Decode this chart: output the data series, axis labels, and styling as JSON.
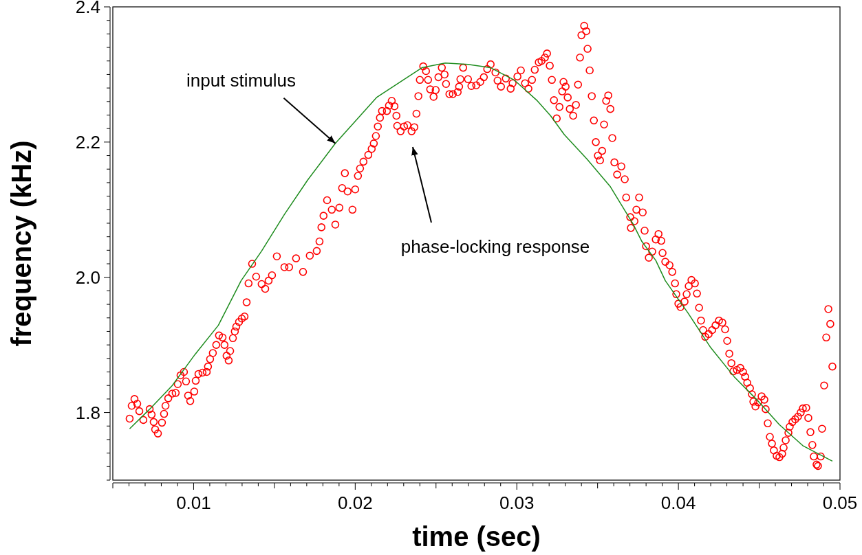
{
  "chart_data": {
    "type": "scatter",
    "xlabel": "time (sec)",
    "ylabel": "frequency (kHz)",
    "xlim": [
      0.005,
      0.05
    ],
    "ylim": [
      1.7,
      2.4
    ],
    "xticks": [
      {
        "value": 0.005,
        "label": null
      },
      {
        "value": 0.006,
        "label": null
      },
      {
        "value": 0.007,
        "label": null
      },
      {
        "value": 0.008,
        "label": null
      },
      {
        "value": 0.009,
        "label": null
      },
      0.01,
      {
        "value": 0.011,
        "label": null
      },
      {
        "value": 0.012,
        "label": null
      },
      {
        "value": 0.013,
        "label": null
      },
      {
        "value": 0.014,
        "label": null
      },
      {
        "value": 0.015,
        "label": null
      },
      {
        "value": 0.016,
        "label": null
      },
      {
        "value": 0.017,
        "label": null
      },
      {
        "value": 0.018,
        "label": null
      },
      {
        "value": 0.019,
        "label": null
      },
      0.02,
      {
        "value": 0.021,
        "label": null
      },
      {
        "value": 0.022,
        "label": null
      },
      {
        "value": 0.023,
        "label": null
      },
      {
        "value": 0.024,
        "label": null
      },
      {
        "value": 0.025,
        "label": null
      },
      {
        "value": 0.026,
        "label": null
      },
      {
        "value": 0.027,
        "label": null
      },
      {
        "value": 0.028,
        "label": null
      },
      {
        "value": 0.029,
        "label": null
      },
      0.03,
      {
        "value": 0.031,
        "label": null
      },
      {
        "value": 0.032,
        "label": null
      },
      {
        "value": 0.033,
        "label": null
      },
      {
        "value": 0.034,
        "label": null
      },
      {
        "value": 0.035,
        "label": null
      },
      {
        "value": 0.036,
        "label": null
      },
      {
        "value": 0.037,
        "label": null
      },
      {
        "value": 0.038,
        "label": null
      },
      {
        "value": 0.039,
        "label": null
      },
      0.04,
      {
        "value": 0.041,
        "label": null
      },
      {
        "value": 0.042,
        "label": null
      },
      {
        "value": 0.043,
        "label": null
      },
      {
        "value": 0.044,
        "label": null
      },
      {
        "value": 0.045,
        "label": null
      },
      {
        "value": 0.046,
        "label": null
      },
      {
        "value": 0.047,
        "label": null
      },
      {
        "value": 0.048,
        "label": null
      },
      {
        "value": 0.049,
        "label": null
      },
      0.05
    ],
    "yticks": [
      {
        "value": 1.7,
        "label": null
      },
      {
        "value": 1.72,
        "label": null
      },
      {
        "value": 1.74,
        "label": null
      },
      {
        "value": 1.76,
        "label": null
      },
      {
        "value": 1.78,
        "label": null
      },
      1.8,
      {
        "value": 1.82,
        "label": null
      },
      {
        "value": 1.84,
        "label": null
      },
      {
        "value": 1.86,
        "label": null
      },
      {
        "value": 1.88,
        "label": null
      },
      {
        "value": 1.9,
        "label": null
      },
      {
        "value": 1.92,
        "label": null
      },
      {
        "value": 1.94,
        "label": null
      },
      {
        "value": 1.96,
        "label": null
      },
      {
        "value": 1.98,
        "label": null
      },
      {
        "value": 2,
        "label": "2.0"
      },
      {
        "value": 2.02,
        "label": null
      },
      {
        "value": 2.04,
        "label": null
      },
      {
        "value": 2.06,
        "label": null
      },
      {
        "value": 2.08,
        "label": null
      },
      {
        "value": 2.1,
        "label": null
      },
      {
        "value": 2.12,
        "label": null
      },
      {
        "value": 2.14,
        "label": null
      },
      {
        "value": 2.16,
        "label": null
      },
      {
        "value": 2.18,
        "label": null
      },
      2.2,
      {
        "value": 2.22,
        "label": null
      },
      {
        "value": 2.24,
        "label": null
      },
      {
        "value": 2.26,
        "label": null
      },
      {
        "value": 2.28,
        "label": null
      },
      {
        "value": 2.3,
        "label": null
      },
      {
        "value": 2.32,
        "label": null
      },
      {
        "value": 2.34,
        "label": null
      },
      {
        "value": 2.36,
        "label": null
      },
      {
        "value": 2.38,
        "label": null
      },
      2.4
    ],
    "annotations": [
      {
        "text": "input stimulus",
        "x": 0.01877,
        "y": 2.198
      },
      "phase-locking response"
    ],
    "series": [
      {
        "type": "scatter",
        "color": "#ff0000",
        "marker": "circle",
        "x": [
          0.00604,
          0.00617,
          0.00634,
          0.00651,
          0.00664,
          0.00689,
          0.00728,
          0.0074,
          0.00753,
          0.00762,
          0.00779,
          0.00804,
          0.00817,
          0.00826,
          0.00843,
          0.00868,
          0.00889,
          0.00902,
          0.00919,
          0.0094,
          0.00953,
          0.00966,
          0.00979,
          0.01004,
          0.01013,
          0.0103,
          0.01055,
          0.01081,
          0.01089,
          0.01102,
          0.01119,
          0.0114,
          0.01157,
          0.01179,
          0.01191,
          0.01204,
          0.01217,
          0.01226,
          0.01243,
          0.01255,
          0.01264,
          0.01281,
          0.01298,
          0.01315,
          0.01328,
          0.0134,
          0.01362,
          0.01387,
          0.01421,
          0.01443,
          0.01464,
          0.01485,
          0.01515,
          0.01562,
          0.01591,
          0.01634,
          0.01677,
          0.01719,
          0.01762,
          0.01779,
          0.01791,
          0.01804,
          0.01826,
          0.01855,
          0.01877,
          0.01902,
          0.01919,
          0.01936,
          0.01953,
          0.01983,
          0.02,
          0.02017,
          0.0203,
          0.02051,
          0.02081,
          0.02102,
          0.02115,
          0.02128,
          0.0214,
          0.02153,
          0.02166,
          0.02196,
          0.02209,
          0.02226,
          0.02243,
          0.02255,
          0.0226,
          0.02281,
          0.02302,
          0.02323,
          0.02349,
          0.02366,
          0.02379,
          0.02391,
          0.024,
          0.02421,
          0.02438,
          0.02451,
          0.02464,
          0.02485,
          0.02498,
          0.02515,
          0.02536,
          0.02553,
          0.02562,
          0.02583,
          0.02604,
          0.02634,
          0.02643,
          0.02651,
          0.02668,
          0.02698,
          0.02719,
          0.02749,
          0.02774,
          0.02796,
          0.02817,
          0.02838,
          0.02868,
          0.02881,
          0.02902,
          0.02932,
          0.02962,
          0.02974,
          0.03004,
          0.03025,
          0.03051,
          0.03072,
          0.03094,
          0.03111,
          0.03136,
          0.03153,
          0.03174,
          0.03187,
          0.03204,
          0.03217,
          0.0323,
          0.03247,
          0.03264,
          0.03281,
          0.03289,
          0.03302,
          0.03315,
          0.03328,
          0.03349,
          0.03366,
          0.03379,
          0.03391,
          0.034,
          0.03417,
          0.0343,
          0.03438,
          0.03451,
          0.03464,
          0.03477,
          0.03489,
          0.03502,
          0.03515,
          0.03528,
          0.0354,
          0.03553,
          0.03566,
          0.03579,
          0.03591,
          0.03604,
          0.03621,
          0.03647,
          0.03668,
          0.03677,
          0.03702,
          0.03706,
          0.03728,
          0.0374,
          0.03757,
          0.03779,
          0.03791,
          0.038,
          0.03817,
          0.03838,
          0.0386,
          0.03877,
          0.03894,
          0.03902,
          0.03919,
          0.03945,
          0.03962,
          0.03979,
          0.03987,
          0.04,
          0.04013,
          0.04038,
          0.04051,
          0.04064,
          0.04081,
          0.04102,
          0.04115,
          0.04128,
          0.0414,
          0.04153,
          0.04166,
          0.04187,
          0.04209,
          0.0423,
          0.04251,
          0.04272,
          0.04289,
          0.04302,
          0.04315,
          0.04328,
          0.0434,
          0.04362,
          0.04383,
          0.044,
          0.04413,
          0.04426,
          0.04443,
          0.04455,
          0.04464,
          0.04477,
          0.04494,
          0.04515,
          0.04532,
          0.0454,
          0.04553,
          0.04566,
          0.04579,
          0.04591,
          0.04608,
          0.04625,
          0.04642,
          0.04651,
          0.04664,
          0.04681,
          0.04689,
          0.04706,
          0.04723,
          0.0474,
          0.04757,
          0.0477,
          0.04791,
          0.04804,
          0.04817,
          0.04829,
          0.04838,
          0.04855,
          0.04864,
          0.04881,
          0.04889,
          0.04902,
          0.04915,
          0.04928,
          0.0494,
          0.04953
        ],
        "values": [
          1.791,
          1.81,
          1.82,
          1.813,
          1.802,
          1.789,
          1.805,
          1.797,
          1.786,
          1.775,
          1.769,
          1.785,
          1.798,
          1.81,
          1.821,
          1.828,
          1.829,
          1.842,
          1.855,
          1.86,
          1.846,
          1.825,
          1.817,
          1.831,
          1.847,
          1.857,
          1.859,
          1.86,
          1.868,
          1.879,
          1.888,
          1.9,
          1.914,
          1.911,
          1.9,
          1.884,
          1.877,
          1.891,
          1.91,
          1.92,
          1.927,
          1.934,
          1.939,
          1.942,
          1.963,
          1.991,
          2.02,
          2.001,
          1.99,
          1.983,
          1.995,
          2.003,
          2.031,
          2.015,
          2.015,
          2.028,
          2.008,
          2.032,
          2.039,
          2.053,
          2.074,
          2.091,
          2.114,
          2.1,
          2.078,
          2.103,
          2.132,
          2.154,
          2.127,
          2.1,
          2.13,
          2.15,
          2.161,
          2.171,
          2.181,
          2.19,
          2.198,
          2.209,
          2.223,
          2.236,
          2.246,
          2.246,
          2.254,
          2.261,
          2.253,
          2.239,
          2.224,
          2.216,
          2.223,
          2.225,
          2.216,
          2.222,
          2.242,
          2.268,
          2.292,
          2.312,
          2.305,
          2.292,
          2.278,
          2.267,
          2.277,
          2.296,
          2.31,
          2.3,
          2.286,
          2.271,
          2.271,
          2.274,
          2.282,
          2.293,
          2.31,
          2.293,
          2.283,
          2.284,
          2.289,
          2.296,
          2.308,
          2.315,
          2.303,
          2.291,
          2.282,
          2.294,
          2.279,
          2.287,
          2.297,
          2.306,
          2.287,
          2.279,
          2.292,
          2.307,
          2.318,
          2.32,
          2.325,
          2.331,
          2.313,
          2.292,
          2.262,
          2.235,
          2.252,
          2.275,
          2.289,
          2.282,
          2.266,
          2.249,
          2.239,
          2.255,
          2.285,
          2.325,
          2.358,
          2.372,
          2.364,
          2.338,
          2.306,
          2.268,
          2.232,
          2.2,
          2.18,
          2.173,
          2.187,
          2.226,
          2.261,
          2.269,
          2.249,
          2.206,
          2.17,
          2.152,
          2.164,
          2.145,
          2.118,
          2.089,
          2.073,
          2.083,
          2.1,
          2.118,
          2.096,
          2.069,
          2.046,
          2.029,
          2.038,
          2.056,
          2.064,
          2.054,
          2.036,
          2.023,
          2.018,
          2.008,
          1.991,
          1.975,
          1.961,
          1.956,
          1.964,
          1.975,
          1.987,
          1.996,
          1.991,
          1.976,
          1.955,
          1.936,
          1.922,
          1.912,
          1.916,
          1.922,
          1.929,
          1.936,
          1.933,
          1.923,
          1.906,
          1.887,
          1.873,
          1.861,
          1.863,
          1.866,
          1.86,
          1.853,
          1.844,
          1.836,
          1.827,
          1.816,
          1.809,
          1.815,
          1.824,
          1.819,
          1.805,
          1.784,
          1.764,
          1.754,
          1.744,
          1.736,
          1.734,
          1.739,
          1.748,
          1.759,
          1.77,
          1.779,
          1.786,
          1.79,
          1.794,
          1.8,
          1.806,
          1.807,
          1.792,
          1.771,
          1.752,
          1.735,
          1.723,
          1.721,
          1.735,
          1.776,
          1.84,
          1.911,
          1.953,
          1.931,
          1.868
        ]
      },
      {
        "type": "line",
        "color": "#1e8c1e",
        "x": [
          0.00604,
          0.00728,
          0.00868,
          0.01009,
          0.01153,
          0.01294,
          0.01421,
          0.01562,
          0.01706,
          0.01877,
          0.02132,
          0.02413,
          0.02557,
          0.02698,
          0.02838,
          0.02983,
          0.03123,
          0.03209,
          0.03294,
          0.03434,
          0.03579,
          0.03719,
          0.03774,
          0.0386,
          0.03919,
          0.0406,
          0.042,
          0.04345,
          0.04485,
          0.04625,
          0.0477,
          0.04953
        ],
        "values": [
          1.776,
          1.805,
          1.84,
          1.886,
          1.929,
          1.995,
          2.039,
          2.093,
          2.144,
          2.198,
          2.266,
          2.31,
          2.317,
          2.315,
          2.31,
          2.292,
          2.262,
          2.239,
          2.211,
          2.175,
          2.134,
          2.079,
          2.053,
          2.025,
          1.995,
          1.947,
          1.896,
          1.853,
          1.819,
          1.782,
          1.751,
          1.728
        ]
      }
    ]
  }
}
